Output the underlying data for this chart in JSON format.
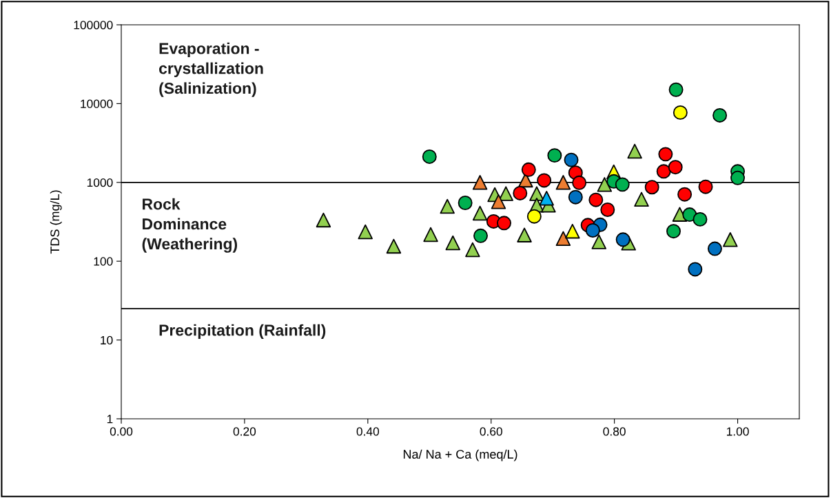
{
  "chart_data": {
    "type": "scatter",
    "xlabel": "Na/ Na + Ca (meq/L)",
    "ylabel": "TDS (mg/L)",
    "annotations": [
      "Evaporation -\ncrystallization\n(Salinization)",
      "Rock\nDominance\n(Weathering)",
      "Precipitation (Rainfall)"
    ],
    "log": "y",
    "grid": false,
    "legend": false,
    "xlim": [
      0,
      1.1
    ],
    "ylim": [
      1,
      100000
    ],
    "xticks": [
      {
        "value": 0,
        "label": "0.00"
      },
      {
        "value": 0.2,
        "label": "0.20"
      },
      {
        "value": 0.4,
        "label": "0.40"
      },
      {
        "value": 0.6,
        "label": "0.60"
      },
      {
        "value": 0.8,
        "label": "0.80"
      },
      {
        "value": 1.0,
        "label": "1.00"
      }
    ],
    "yticks": [
      1,
      10,
      100,
      1000,
      10000,
      100000
    ],
    "ref_lines": [
      {
        "axis": "y",
        "value": 1000,
        "color": "#000000",
        "line_style": "solid"
      },
      {
        "axis": "y",
        "value": 25,
        "color": "#000000",
        "line_style": "solid"
      }
    ],
    "series": [
      {
        "marker": "triangle",
        "color": "#92d050",
        "x": [
          0.784,
          0.833,
          0.606,
          0.624,
          0.674,
          0.674,
          0.693,
          0.582,
          0.654,
          0.775,
          0.823,
          0.844,
          0.906,
          0.988,
          0.328,
          0.396,
          0.442,
          0.502,
          0.538,
          0.57,
          0.529
        ],
        "values": [
          940,
          2490,
          700,
          720,
          720,
          515,
          515,
          407,
          215,
          176,
          170,
          610,
          393,
          188,
          333,
          236,
          155,
          218,
          171,
          140,
          497
        ]
      },
      {
        "marker": "triangle",
        "color": "#ed7d31",
        "x": [
          0.582,
          0.656,
          0.717,
          0.612,
          0.717
        ],
        "values": [
          1000,
          1070,
          1000,
          570,
          194
        ]
      },
      {
        "marker": "triangle",
        "color": "#ffff00",
        "x": [
          0.799,
          0.732
        ],
        "values": [
          1360,
          240
        ]
      },
      {
        "marker": "triangle",
        "color": "#00b0f0",
        "x": [
          0.69
        ],
        "values": [
          630
        ]
      },
      {
        "marker": "circle",
        "color": "#00b050",
        "x": [
          0.9,
          0.971,
          0.703,
          0.799,
          0.813,
          1.0,
          1.0,
          0.922,
          0.939,
          0.896,
          0.583,
          0.5,
          0.558
        ],
        "values": [
          15000,
          7100,
          2200,
          1030,
          940,
          1380,
          1140,
          390,
          340,
          240,
          210,
          2120,
          550
        ]
      },
      {
        "marker": "circle",
        "color": "#ff0000",
        "x": [
          0.661,
          0.686,
          0.737,
          0.743,
          0.647,
          0.77,
          0.789,
          0.604,
          0.621,
          0.757,
          0.861,
          0.914,
          0.948,
          0.88,
          0.899,
          0.883
        ],
        "values": [
          1450,
          1060,
          1330,
          990,
          730,
          600,
          450,
          320,
          305,
          287,
          870,
          705,
          880,
          1380,
          1560,
          2280
        ]
      },
      {
        "marker": "circle",
        "color": "#0070c0",
        "x": [
          0.73,
          0.737,
          0.777,
          0.765,
          0.814,
          0.963,
          0.931
        ],
        "values": [
          1930,
          650,
          290,
          246,
          188,
          144,
          79
        ]
      },
      {
        "marker": "circle",
        "color": "#ffff00",
        "x": [
          0.907,
          0.67
        ],
        "values": [
          7700,
          370
        ]
      }
    ]
  }
}
